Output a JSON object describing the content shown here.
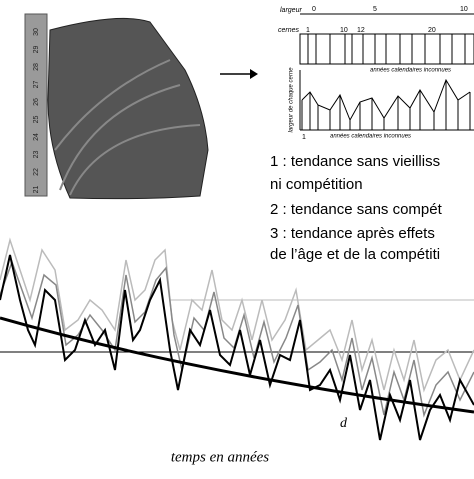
{
  "photo": {
    "ruler_labels": [
      "30",
      "29",
      "28",
      "27",
      "26",
      "25",
      "24",
      "23",
      "22",
      "21"
    ]
  },
  "diagram": {
    "width_label": "largeur",
    "width_ticks": [
      "0",
      "5",
      "10"
    ],
    "rings_label": "cernes",
    "ring_ticks": [
      "1",
      "10",
      "12",
      "20"
    ],
    "unknown_years": "années calendaires inconnues",
    "y_label": "largeur de chaque cerne",
    "bottom_ticks": [
      "1"
    ]
  },
  "legend": [
    "1 : tendance sans vieilliss",
    "ni compétition",
    "2 : tendance sans compét",
    "3 : tendance après effets",
    "de l’âge et de la compétiti"
  ],
  "chart": {
    "x_label": "temps en années",
    "curve_label": "d"
  }
}
